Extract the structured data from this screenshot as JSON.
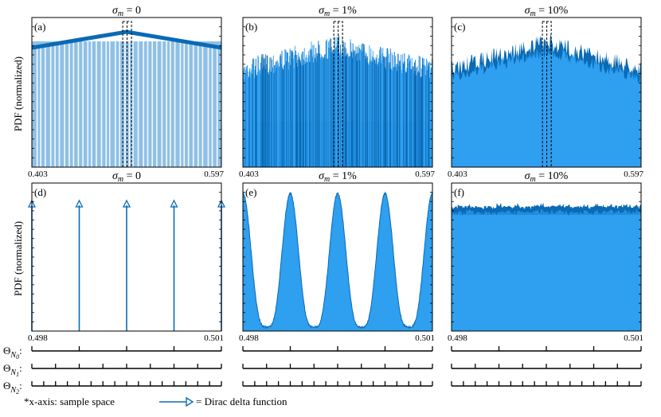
{
  "figure": {
    "y_axis_label": "PDF (normalized)",
    "footnote": "*x-axis: sample space",
    "legend_text": "= Dirac delta function",
    "scale_labels": [
      "Θ_N0:",
      "Θ_N1:",
      "Θ_N2:"
    ],
    "colors": {
      "dark": "#0a6ab5",
      "light": "#2f9ff0",
      "mid": "#4a90c9",
      "bar_light": "#8fc0e6"
    }
  },
  "chart_data": [
    {
      "panel": "(a)",
      "title": "σm = 0",
      "type": "bar",
      "xlabels": [
        "0.403",
        "0.597"
      ],
      "xlim": [
        0.403,
        0.597
      ],
      "shape": "triangle",
      "peak_at": 0.5,
      "dashed_box": [
        0.496,
        0.505
      ]
    },
    {
      "panel": "(b)",
      "title": "σm = 1%",
      "type": "bar",
      "xlabels": [
        "0.403",
        "0.597"
      ],
      "xlim": [
        0.403,
        0.597
      ],
      "shape": "noisy-triangle",
      "dashed_box": [
        0.496,
        0.505
      ]
    },
    {
      "panel": "(c)",
      "title": "σm = 10%",
      "type": "area",
      "xlabels": [
        "0.403",
        "0.597"
      ],
      "xlim": [
        0.403,
        0.597
      ],
      "shape": "noisy-triangle-filled",
      "dashed_box": [
        0.496,
        0.505
      ]
    },
    {
      "panel": "(d)",
      "title": "σm = 0",
      "type": "bar",
      "xlabels": [
        "0.498",
        "0.501"
      ],
      "xlim": [
        0.498,
        0.501
      ],
      "dirac_positions": [
        0.498,
        0.49875,
        0.4995,
        0.50025,
        0.501
      ]
    },
    {
      "panel": "(e)",
      "title": "σm = 1%",
      "type": "area",
      "xlabels": [
        "0.498",
        "0.501"
      ],
      "xlim": [
        0.498,
        0.501
      ],
      "shape": "periodic-peaks",
      "peaks": 4
    },
    {
      "panel": "(f)",
      "title": "σm = 10%",
      "type": "area",
      "xlabels": [
        "0.498",
        "0.501"
      ],
      "xlim": [
        0.498,
        0.501
      ],
      "shape": "flat-noisy"
    }
  ]
}
